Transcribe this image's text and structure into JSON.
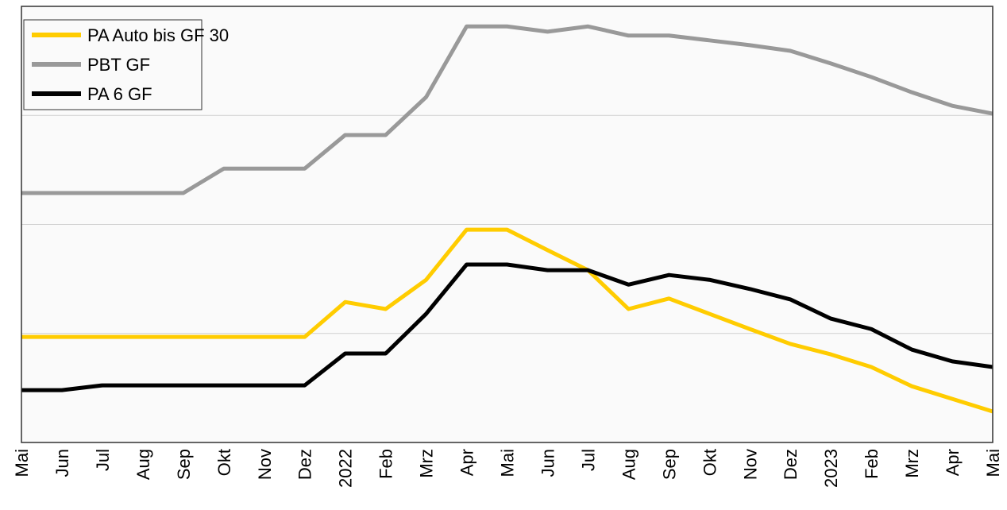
{
  "chart_data": {
    "type": "line",
    "categories": [
      "Mai",
      "Jun",
      "Jul",
      "Aug",
      "Sep",
      "Okt",
      "Nov",
      "Dez",
      "2022",
      "Feb",
      "Mrz",
      "Apr",
      "Mai",
      "Jun",
      "Jul",
      "Aug",
      "Sep",
      "Okt",
      "Nov",
      "Dez",
      "2023",
      "Feb",
      "Mrz",
      "Apr",
      "Mai"
    ],
    "series": [
      {
        "name": "PA Auto bis GF 30",
        "color": "#ffcc00",
        "values": [
          24.2,
          24.2,
          24.2,
          24.2,
          24.2,
          24.2,
          24.2,
          24.2,
          32.2,
          30.6,
          37.3,
          48.8,
          48.8,
          44.1,
          39.5,
          30.6,
          33.0,
          29.5,
          26.0,
          22.6,
          20.2,
          17.3,
          12.9,
          10.0,
          7.1
        ]
      },
      {
        "name": "PBT GF",
        "color": "#999999",
        "values": [
          57.2,
          57.2,
          57.2,
          57.2,
          57.2,
          62.8,
          62.8,
          62.8,
          70.5,
          70.5,
          79.2,
          95.4,
          95.4,
          94.2,
          95.4,
          93.3,
          93.3,
          92.2,
          91.1,
          89.8,
          86.9,
          83.8,
          80.3,
          77.2,
          75.4
        ]
      },
      {
        "name": "PA 6 GF",
        "color": "#000000",
        "values": [
          12.0,
          12.0,
          13.1,
          13.1,
          13.1,
          13.1,
          13.1,
          13.1,
          20.4,
          20.4,
          29.5,
          40.8,
          40.8,
          39.5,
          39.5,
          36.2,
          38.4,
          37.3,
          35.2,
          32.8,
          28.4,
          26.0,
          21.3,
          18.6,
          17.3
        ]
      }
    ],
    "ylim": [
      0,
      100
    ],
    "grid_lines": [
      25,
      50,
      75
    ],
    "legend": "upper left"
  }
}
